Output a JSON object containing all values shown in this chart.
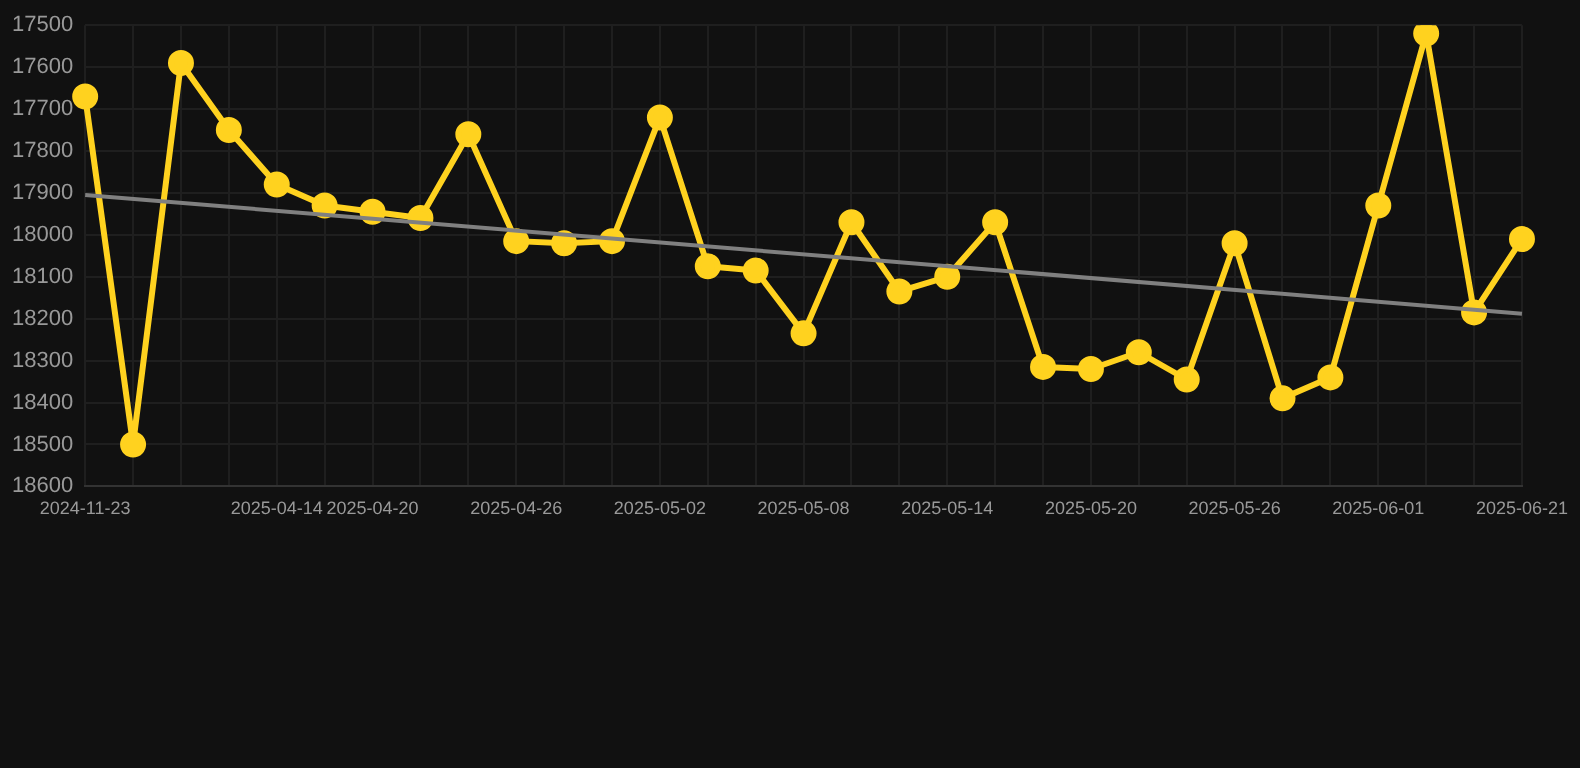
{
  "chart_data": {
    "type": "line",
    "categories": [
      "2024-11-23",
      null,
      null,
      null,
      "2025-04-14",
      null,
      "2025-04-20",
      null,
      null,
      "2025-04-26",
      null,
      null,
      "2025-05-02",
      null,
      null,
      "2025-05-08",
      null,
      null,
      "2025-05-14",
      null,
      null,
      "2025-05-20",
      null,
      null,
      "2025-05-26",
      null,
      null,
      "2025-06-01",
      null,
      null,
      "2025-06-21"
    ],
    "series": [
      {
        "color": "#ffd21f",
        "marker": "circle",
        "values": [
          17670,
          18500,
          17590,
          17750,
          17880,
          17930,
          17945,
          17960,
          17760,
          18015,
          18020,
          18015,
          17720,
          18075,
          18085,
          18235,
          17970,
          18135,
          18100,
          17970,
          18315,
          18320,
          18280,
          18345,
          18020,
          18390,
          18340,
          17930,
          17520,
          18185,
          18010
        ]
      },
      {
        "color": "#808080",
        "marker": "none",
        "values": [
          17905,
          null,
          null,
          null,
          null,
          null,
          null,
          null,
          null,
          null,
          null,
          null,
          null,
          null,
          null,
          null,
          null,
          null,
          null,
          null,
          null,
          null,
          null,
          null,
          null,
          null,
          null,
          null,
          null,
          null,
          18188
        ]
      }
    ],
    "ylim": [
      18600,
      17500
    ],
    "yticks": [
      17500,
      17600,
      17700,
      17800,
      17900,
      18000,
      18100,
      18200,
      18300,
      18400,
      18500,
      18600
    ],
    "grid": true,
    "legend": false
  }
}
